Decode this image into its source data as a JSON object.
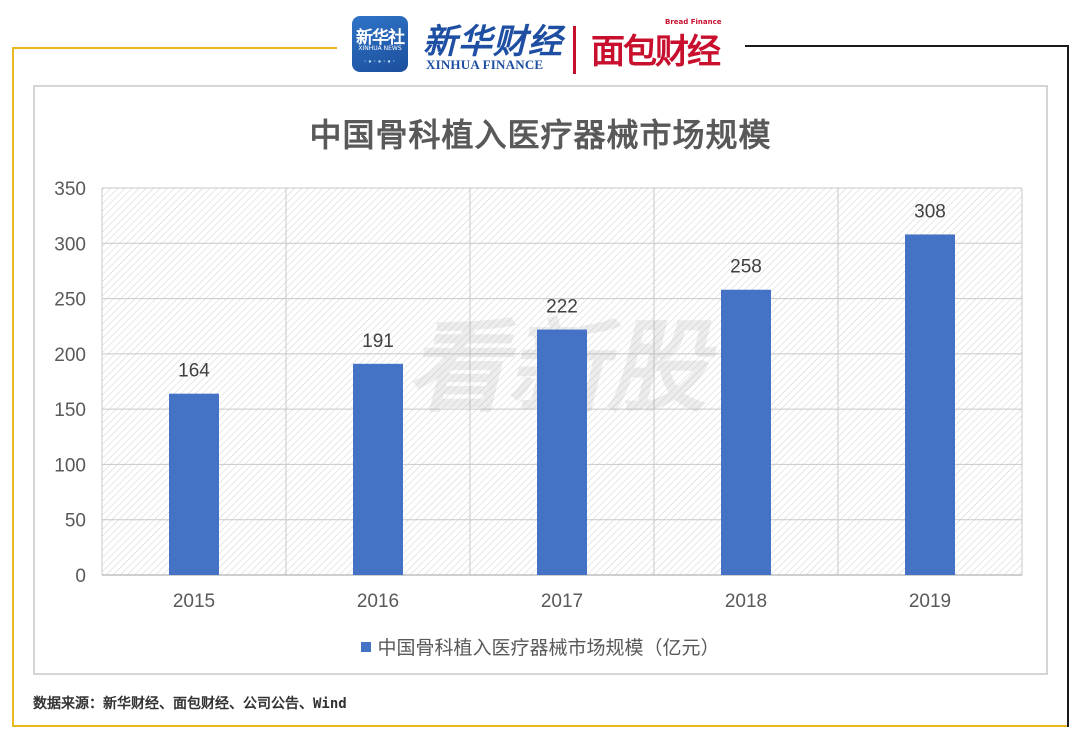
{
  "header": {
    "xinhua_badge_cn": "新华社",
    "xinhua_badge_en": "XINHUA NEWS",
    "xinhua_finance_cn": "新华财经",
    "xinhua_finance_en": "XINHUA FINANCE",
    "bread_cn": "面包财经",
    "bread_en": "Bread Finance"
  },
  "watermark": "看新股",
  "source": "数据来源：新华财经、面包财经、公司公告、Wind",
  "chart_data": {
    "type": "bar",
    "title": "中国骨科植入医疗器械市场规模",
    "categories": [
      "2015",
      "2016",
      "2017",
      "2018",
      "2019"
    ],
    "series": [
      {
        "name": "中国骨科植入医疗器械市场规模（亿元）",
        "values": [
          164,
          191,
          222,
          258,
          308
        ],
        "color": "#4472c4"
      }
    ],
    "data_labels": [
      "164",
      "191",
      "222",
      "258",
      "308"
    ],
    "ylim": [
      0,
      350
    ],
    "yticks": [
      0,
      50,
      100,
      150,
      200,
      250,
      300,
      350
    ],
    "xlabel": "",
    "ylabel": "",
    "grid": true,
    "legend_position": "bottom"
  }
}
